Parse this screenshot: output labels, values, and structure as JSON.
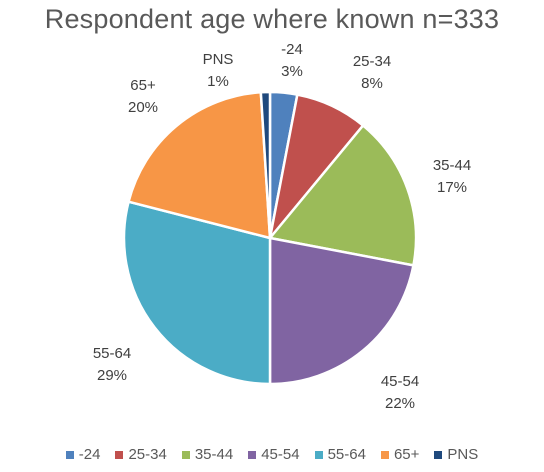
{
  "chart_data": {
    "type": "pie",
    "title": "Respondent age where known n=333",
    "slices": [
      {
        "label": "-24",
        "value": 3,
        "pct_label": "3%",
        "color": "#4f81bd"
      },
      {
        "label": "25-34",
        "value": 8,
        "pct_label": "8%",
        "color": "#c0504d"
      },
      {
        "label": "35-44",
        "value": 17,
        "pct_label": "17%",
        "color": "#9bbb59"
      },
      {
        "label": "45-54",
        "value": 22,
        "pct_label": "22%",
        "color": "#8064a2"
      },
      {
        "label": "55-64",
        "value": 29,
        "pct_label": "29%",
        "color": "#4bacc6"
      },
      {
        "label": "65+",
        "value": 20,
        "pct_label": "20%",
        "color": "#f79646"
      },
      {
        "label": "PNS",
        "value": 1,
        "pct_label": "1%",
        "color": "#1f497d"
      }
    ],
    "legend_position": "bottom"
  }
}
